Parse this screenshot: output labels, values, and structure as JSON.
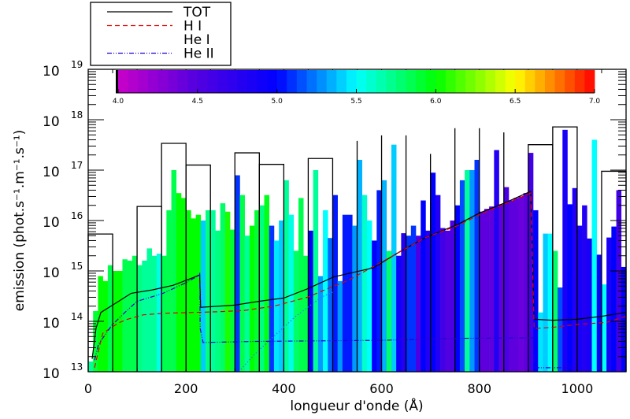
{
  "chart_data": {
    "type": "bar",
    "title": "",
    "xlabel": "longueur d'onde (Å)",
    "ylabel": "emission (phot.s⁻¹.m⁻¹.s⁻¹)",
    "xlim": [
      0,
      1100
    ],
    "ylim": [
      10000000000000.0,
      1e+19
    ],
    "yscale": "log",
    "grid": false,
    "x_ticks": [
      "0",
      "200",
      "400",
      "600",
      "800",
      "1000"
    ],
    "x_tick_values": [
      0,
      200,
      400,
      600,
      800,
      1000
    ],
    "y_ticks": [
      {
        "base": "10",
        "exp": "13",
        "value": 10000000000000.0
      },
      {
        "base": "10",
        "exp": "14",
        "value": 100000000000000.0
      },
      {
        "base": "10",
        "exp": "15",
        "value": 1000000000000000.0
      },
      {
        "base": "10",
        "exp": "16",
        "value": 1e+16
      },
      {
        "base": "10",
        "exp": "17",
        "value": 1e+17
      },
      {
        "base": "10",
        "exp": "18",
        "value": 1e+18
      },
      {
        "base": "10",
        "exp": "19",
        "value": 1e+19
      }
    ],
    "colorbar": {
      "range": [
        4.0,
        7.0
      ],
      "tick_labels": [
        "4.0",
        "4.5",
        "5.0",
        "5.5",
        "6.0",
        "6.5",
        "7.0"
      ],
      "colormap": [
        [
          4.0,
          "#c800c8"
        ],
        [
          4.5,
          "#5200e0"
        ],
        [
          5.0,
          "#0000ff"
        ],
        [
          5.5,
          "#00ffff"
        ],
        [
          6.0,
          "#00ff00"
        ],
        [
          6.5,
          "#ffff00"
        ],
        [
          7.0,
          "#ff0000"
        ]
      ]
    },
    "bars": {
      "bin_width": 10,
      "x_start": 0,
      "values": [
        16000000000000.0,
        160000000000000.0,
        790000000000000.0,
        630000000000000.0,
        1300000000000000.0,
        1000000000000000.0,
        1000000000000000.0,
        1700000000000000.0,
        1600000000000000.0,
        2000000000000000.0,
        1300000000000000.0,
        1600000000000000.0,
        2800000000000000.0,
        2000000000000000.0,
        2200000000000000.0,
        2000000000000000.0,
        1.6e+16,
        1e+17,
        3.5e+16,
        2.8e+16,
        1.6e+16,
        1.1e+16,
        1.3e+16,
        1e+16,
        1.6e+16,
        1.6e+16,
        6300000000000000.0,
        2.2e+16,
        1.5e+16,
        6600000000000000.0,
        7.9e+16,
        3.2e+16,
        5000000000000000.0,
        7900000000000000.0,
        1.6e+16,
        2e+16,
        3.2e+16,
        7900000000000000.0,
        4000000000000000.0,
        1e+16,
        6.3e+16,
        1.3e+16,
        2500000000000000.0,
        2.8e+16,
        2000000000000000.0,
        6300000000000000.0,
        1e+17,
        790000000000000.0,
        1.6e+16,
        4500000000000000.0,
        3.2e+16,
        630000000000000.0,
        1.3e+16,
        1.3e+16,
        7900000000000000.0,
        1.6e+17,
        3.2e+16,
        1e+16,
        4000000000000000.0,
        4e+16,
        6.3e+16,
        2500000000000000.0,
        3.2e+17,
        2000000000000000.0,
        5600000000000000.0,
        5000000000000000.0,
        7900000000000000.0,
        5000000000000000.0,
        2.5e+16,
        6300000000000000.0,
        8.9e+16,
        3.2e+16,
        7100000000000000.0,
        6300000000000000.0,
        1e+16,
        2e+16,
        6.3e+16,
        1e+17,
        1e+17,
        1.6e+17,
        1.5e+16,
        1.7e+16,
        1.9e+16,
        2.5e+17,
        2.1e+16,
        4.6e+16,
        2.5e+16,
        2.8e+16,
        3e+16,
        3.5e+16,
        2.2e+17,
        1.6e+16,
        150000000000000.0,
        5500000000000000.0,
        5500000000000000.0,
        2500000000000000.0,
        470000000000000.0,
        6.3e+17,
        2.1e+16,
        4.4e+16,
        7900000000000000.0,
        2e+16,
        4400000000000000.0,
        4e+17,
        2100000000000000.0,
        540000000000000.0,
        4600000000000000.0,
        7600000000000000.0,
        4e+16,
        1200000000000000.0
      ],
      "log_temperature": [
        5.7,
        5.9,
        6.0,
        6.0,
        5.85,
        6.0,
        6.0,
        5.85,
        5.85,
        5.85,
        5.75,
        5.7,
        5.7,
        5.7,
        5.55,
        5.85,
        5.85,
        5.85,
        6.0,
        6.0,
        6.0,
        6.0,
        6.0,
        5.4,
        5.75,
        5.7,
        5.75,
        5.8,
        6.05,
        5.9,
        5.1,
        5.85,
        5.7,
        6.0,
        5.9,
        5.75,
        5.95,
        5.1,
        5.45,
        5.4,
        5.7,
        5.55,
        5.8,
        5.85,
        5.85,
        5.0,
        5.7,
        5.3,
        5.5,
        5.2,
        5.05,
        5.3,
        5.05,
        5.05,
        5.3,
        5.35,
        5.6,
        5.5,
        5.0,
        5.05,
        5.35,
        5.8,
        5.4,
        4.9,
        4.8,
        5.1,
        5.1,
        4.55,
        5.0,
        4.8,
        5.0,
        4.8,
        4.6,
        4.5,
        4.55,
        5.0,
        5.15,
        5.7,
        5.3,
        5.1,
        4.45,
        4.45,
        4.45,
        4.8,
        4.45,
        4.55,
        4.45,
        4.45,
        4.4,
        4.45,
        4.6,
        5.0,
        5.45,
        5.4,
        5.5,
        5.8,
        5.15,
        4.85,
        5.0,
        4.8,
        4.85,
        4.8,
        4.85,
        5.5,
        4.95,
        5.5,
        4.85,
        5.0,
        4.6,
        5.0
      ]
    },
    "tot_histogram": [
      [
        0,
        50,
        5400000000000000.0
      ],
      [
        100,
        150,
        1.9e+16
      ],
      [
        150,
        200,
        3.4e+17
      ],
      [
        200,
        250,
        1.26e+17
      ],
      [
        300,
        350,
        2.2e+17
      ],
      [
        350,
        400,
        1.3e+17
      ],
      [
        450,
        500,
        1.7e+17
      ],
      [
        550,
        550,
        3.8e+17
      ],
      [
        600,
        600,
        4.9e+17
      ],
      [
        650,
        650,
        4.9e+17
      ],
      [
        700,
        700,
        2.1e+17
      ],
      [
        750,
        750,
        6.8e+17
      ],
      [
        800,
        800,
        6.8e+17
      ],
      [
        850,
        850,
        5.6e+17
      ],
      [
        900,
        950,
        3.2e+17
      ],
      [
        950,
        1000,
        7.2e+17
      ],
      [
        1050,
        1100,
        9.5e+16
      ]
    ],
    "series": [
      {
        "name": "TOT",
        "color": "#000000",
        "style": "solid",
        "x": [
          8,
          16,
          26,
          50,
          88,
          131,
          174,
          228,
          230,
          300,
          350,
          400,
          448,
          502,
          583,
          637,
          690,
          755,
          800,
          850,
          905,
          912,
          950,
          1000,
          1050,
          1100
        ],
        "y": [
          18000000000000.0,
          72000000000000.0,
          150000000000000.0,
          210000000000000.0,
          360000000000000.0,
          420000000000000.0,
          520000000000000.0,
          830000000000000.0,
          190000000000000.0,
          210000000000000.0,
          250000000000000.0,
          290000000000000.0,
          440000000000000.0,
          760000000000000.0,
          1150000000000000.0,
          2400000000000000.0,
          4600000000000000.0,
          8300000000000000.0,
          1.4e+16,
          2.2e+16,
          3.8e+16,
          110000000000000.0,
          105000000000000.0,
          110000000000000.0,
          126000000000000.0,
          150000000000000.0
        ]
      },
      {
        "name": "H I",
        "color": "#e00000",
        "style": "dashed",
        "x": [
          13,
          23,
          30,
          62,
          80,
          113,
          156,
          215,
          266,
          320,
          380,
          448,
          502,
          529,
          610,
          690,
          755,
          800,
          850,
          905,
          912,
          950,
          1000,
          1060,
          1100
        ],
        "y": [
          12000000000000.0,
          32000000000000.0,
          58000000000000.0,
          93000000000000.0,
          110000000000000.0,
          135000000000000.0,
          145000000000000.0,
          150000000000000.0,
          155000000000000.0,
          165000000000000.0,
          200000000000000.0,
          300000000000000.0,
          500000000000000.0,
          630000000000000.0,
          1700000000000000.0,
          4600000000000000.0,
          7900000000000000.0,
          1.3e+16,
          2.1e+16,
          3.5e+16,
          72000000000000.0,
          76000000000000.0,
          87000000000000.0,
          95000000000000.0,
          126000000000000.0
        ]
      },
      {
        "name": "He I",
        "color": "#ffffff",
        "style": "solid",
        "x": [],
        "y": []
      },
      {
        "name": "He II",
        "color": "#2000d0",
        "style": "dashdot",
        "x": [
          13,
          21,
          48,
          75,
          100,
          127,
          153,
          196,
          221,
          228,
          229,
          235,
          340,
          600,
          755,
          910,
          912,
          1000
        ],
        "y": [
          17000000000000.0,
          35000000000000.0,
          83000000000000.0,
          150000000000000.0,
          250000000000000.0,
          300000000000000.0,
          360000000000000.0,
          560000000000000.0,
          760000000000000.0,
          890000000000000.0,
          72000000000000.0,
          38000000000000.0,
          40000000000000.0,
          42000000000000.0,
          46000000000000.0,
          47000000000000.0,
          12000000000000.0,
          12000000000000.0
        ]
      },
      {
        "color": "#3070ff",
        "style": "dotted",
        "x": [
          308,
          340,
          383,
          422,
          476,
          503
        ],
        "y": [
          10000000000000.0,
          22000000000000.0,
          54000000000000.0,
          120000000000000.0,
          300000000000000.0,
          390000000000000.0
        ]
      }
    ],
    "legend": {
      "position": "top-left",
      "entries": [
        "TOT",
        "H I",
        "He I",
        "He II"
      ]
    }
  }
}
